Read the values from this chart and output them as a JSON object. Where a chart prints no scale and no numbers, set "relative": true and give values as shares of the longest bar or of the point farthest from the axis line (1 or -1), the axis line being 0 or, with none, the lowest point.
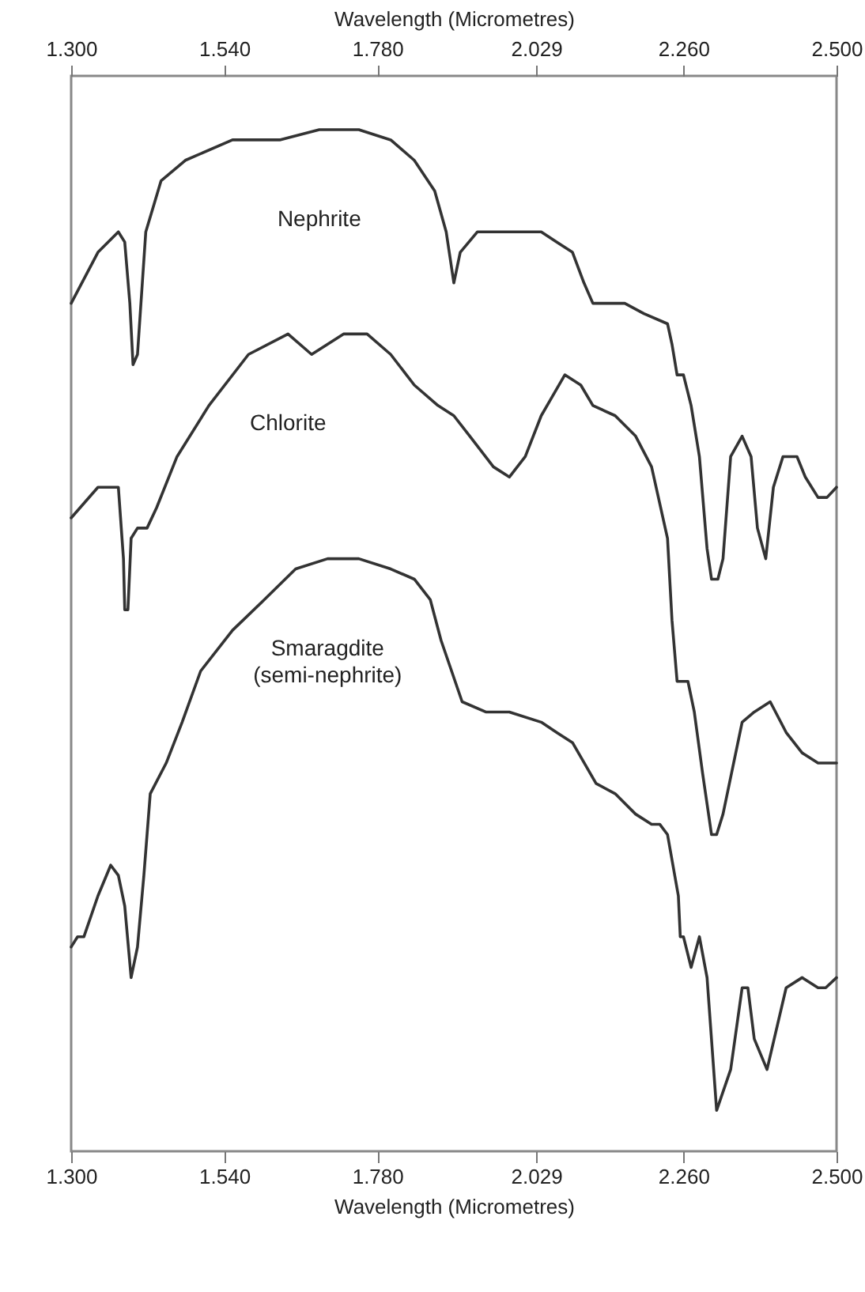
{
  "chart_data": {
    "type": "line",
    "relative": true,
    "xlabel": "Wavelength (Micrometres)",
    "x2label": "Wavelength (Micrometres)",
    "xlim": [
      1.3,
      2.5
    ],
    "x2lim": [
      1.3,
      2.5
    ],
    "xticks": [
      {
        "value": 1.3,
        "label": "1.300"
      },
      {
        "value": 1.54,
        "label": "1.540"
      },
      {
        "value": 1.78,
        "label": "1.780"
      },
      {
        "value": 2.029,
        "label": "2.029"
      },
      {
        "value": 2.26,
        "label": "2.260"
      },
      {
        "value": 2.5,
        "label": "2.500"
      }
    ],
    "x2ticks": [
      {
        "value": 1.3,
        "label": "1.300"
      },
      {
        "value": 1.54,
        "label": "1.540"
      },
      {
        "value": 1.78,
        "label": "1.780"
      },
      {
        "value": 2.029,
        "label": "2.029"
      },
      {
        "value": 2.26,
        "label": "2.260"
      },
      {
        "value": 2.5,
        "label": "2.500"
      }
    ],
    "series": [
      {
        "name": "Nephrite",
        "color": "#333333",
        "x": [
          1.3,
          1.342,
          1.374,
          1.384,
          1.392,
          1.397,
          1.404,
          1.417,
          1.441,
          1.479,
          1.553,
          1.627,
          1.689,
          1.751,
          1.801,
          1.838,
          1.87,
          1.888,
          1.9,
          1.91,
          1.937,
          1.97,
          2.012,
          2.037,
          2.061,
          2.086,
          2.104,
          2.118,
          2.136,
          2.168,
          2.198,
          2.235,
          2.242,
          2.25,
          2.26,
          2.272,
          2.285,
          2.297,
          2.304,
          2.314,
          2.322,
          2.334,
          2.352,
          2.366,
          2.376,
          2.389,
          2.401,
          2.416,
          2.438,
          2.451,
          2.471,
          2.485,
          2.5
        ],
        "values": [
          0.83,
          0.88,
          0.9,
          0.89,
          0.83,
          0.77,
          0.78,
          0.9,
          0.95,
          0.97,
          0.99,
          0.99,
          1.0,
          1.0,
          0.99,
          0.97,
          0.94,
          0.9,
          0.85,
          0.88,
          0.9,
          0.9,
          0.9,
          0.9,
          0.89,
          0.88,
          0.85,
          0.83,
          0.83,
          0.83,
          0.82,
          0.81,
          0.79,
          0.76,
          0.76,
          0.73,
          0.68,
          0.59,
          0.56,
          0.56,
          0.58,
          0.68,
          0.7,
          0.68,
          0.61,
          0.58,
          0.65,
          0.68,
          0.68,
          0.66,
          0.64,
          0.64,
          0.65
        ]
      },
      {
        "name": "Chlorite",
        "color": "#333333",
        "x": [
          1.3,
          1.342,
          1.367,
          1.374,
          1.382,
          1.384,
          1.389,
          1.394,
          1.404,
          1.419,
          1.434,
          1.466,
          1.516,
          1.578,
          1.64,
          1.677,
          1.727,
          1.764,
          1.801,
          1.838,
          1.875,
          1.9,
          1.925,
          1.962,
          1.987,
          2.012,
          2.037,
          2.074,
          2.099,
          2.118,
          2.153,
          2.185,
          2.21,
          2.235,
          2.242,
          2.25,
          2.257,
          2.267,
          2.277,
          2.29,
          2.304,
          2.312,
          2.322,
          2.332,
          2.352,
          2.371,
          2.396,
          2.421,
          2.446,
          2.471,
          2.5
        ],
        "values": [
          0.62,
          0.65,
          0.65,
          0.65,
          0.58,
          0.53,
          0.53,
          0.6,
          0.61,
          0.61,
          0.63,
          0.68,
          0.73,
          0.78,
          0.8,
          0.78,
          0.8,
          0.8,
          0.78,
          0.75,
          0.73,
          0.72,
          0.7,
          0.67,
          0.66,
          0.68,
          0.72,
          0.76,
          0.75,
          0.73,
          0.72,
          0.7,
          0.67,
          0.6,
          0.52,
          0.46,
          0.46,
          0.46,
          0.43,
          0.37,
          0.31,
          0.31,
          0.33,
          0.36,
          0.42,
          0.43,
          0.44,
          0.41,
          0.39,
          0.38,
          0.38
        ]
      },
      {
        "name": "Smaragdite (semi-nephrite)",
        "color": "#333333",
        "x": [
          1.3,
          1.31,
          1.32,
          1.342,
          1.362,
          1.374,
          1.384,
          1.394,
          1.404,
          1.414,
          1.424,
          1.449,
          1.474,
          1.503,
          1.553,
          1.603,
          1.652,
          1.702,
          1.751,
          1.801,
          1.838,
          1.863,
          1.88,
          1.913,
          1.95,
          1.987,
          2.037,
          2.061,
          2.086,
          2.123,
          2.153,
          2.185,
          2.21,
          2.223,
          2.235,
          2.252,
          2.255,
          2.26,
          2.272,
          2.285,
          2.297,
          2.312,
          2.334,
          2.352,
          2.361,
          2.371,
          2.391,
          2.421,
          2.446,
          2.471,
          2.483,
          2.5
        ],
        "values": [
          0.2,
          0.21,
          0.21,
          0.25,
          0.28,
          0.27,
          0.24,
          0.17,
          0.2,
          0.27,
          0.35,
          0.38,
          0.42,
          0.47,
          0.51,
          0.54,
          0.57,
          0.58,
          0.58,
          0.57,
          0.56,
          0.54,
          0.5,
          0.44,
          0.43,
          0.43,
          0.42,
          0.41,
          0.4,
          0.36,
          0.35,
          0.33,
          0.32,
          0.32,
          0.31,
          0.25,
          0.21,
          0.21,
          0.18,
          0.21,
          0.17,
          0.04,
          0.08,
          0.16,
          0.16,
          0.11,
          0.08,
          0.16,
          0.17,
          0.16,
          0.16,
          0.17
        ]
      }
    ]
  }
}
